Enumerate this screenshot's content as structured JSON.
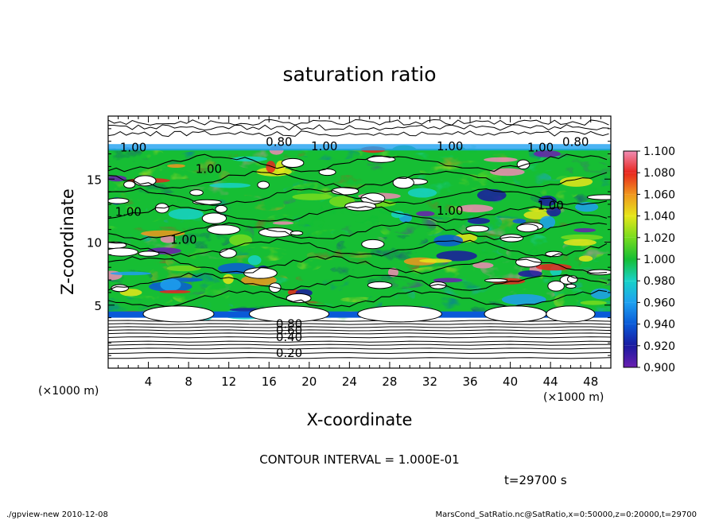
{
  "chart_data": {
    "type": "heatmap",
    "title": "saturation ratio",
    "xlabel": "X-coordinate",
    "ylabel": "Z-coordinate",
    "x_multiplier": "(×1000 m)",
    "y_multiplier": "(×1000 m)",
    "xlim": [
      0,
      50
    ],
    "ylim": [
      0,
      20
    ],
    "x_ticks": [
      "4",
      "8",
      "12",
      "16",
      "20",
      "24",
      "28",
      "32",
      "36",
      "40",
      "44",
      "48"
    ],
    "y_ticks": [
      "5",
      "10",
      "15"
    ],
    "colorbar": {
      "levels": [
        "0.900",
        "0.920",
        "0.940",
        "0.960",
        "0.980",
        "1.000",
        "1.020",
        "1.040",
        "1.060",
        "1.080",
        "1.100"
      ],
      "colors": [
        "#6a1fb0",
        "#1a1aa0",
        "#0a5ad8",
        "#1ea0f0",
        "#18d2c8",
        "#16be34",
        "#78dc1e",
        "#e6e61a",
        "#f0961e",
        "#e8261e",
        "#f08cb4"
      ]
    },
    "contour_labels": [
      "0.20",
      "0.40",
      "0.60",
      "0.80",
      "0.80",
      "0.80",
      "1.00",
      "1.00",
      "1.00",
      "1.00",
      "1.00",
      "1.00",
      "1.00",
      "1.00",
      "1.00"
    ],
    "contour_interval": "CONTOUR INTERVAL = 1.000E-01",
    "time": "t=29700 s",
    "footer_left": "./gpview-new  2010-12-08",
    "footer_right": "MarsCond_SatRatio.nc@SatRatio,x=0:50000,z=0:20000,t=29700"
  }
}
